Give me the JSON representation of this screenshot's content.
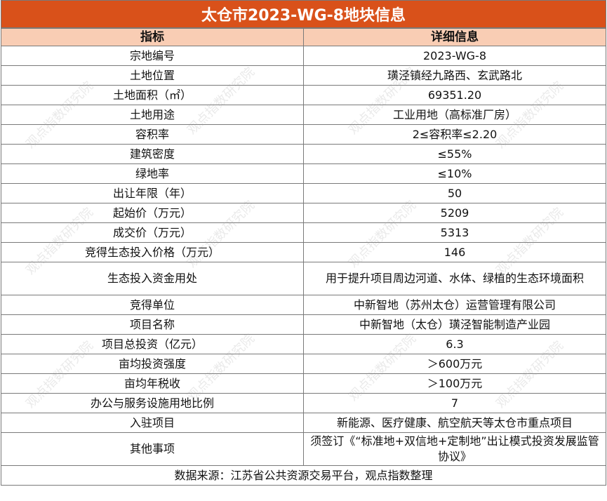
{
  "title": "太仓市2023-WG-8地块信息",
  "header": {
    "col1": "指标",
    "col2": "详细信息"
  },
  "rows": [
    {
      "label": "宗地编号",
      "value": "2023-WG-8"
    },
    {
      "label": "土地位置",
      "value": "璜泾镇经九路西、玄武路北"
    },
    {
      "label": "土地面积（㎡）",
      "value": "69351.20"
    },
    {
      "label": "土地用途",
      "value": "工业用地（高标准厂房）"
    },
    {
      "label": "容积率",
      "value": "2≤容积率≤2.20"
    },
    {
      "label": "建筑密度",
      "value": "≤55%"
    },
    {
      "label": "绿地率",
      "value": "≤10%"
    },
    {
      "label": "出让年限（年）",
      "value": "50"
    },
    {
      "label": "起始价（万元）",
      "value": "5209"
    },
    {
      "label": "成交价（万元）",
      "value": "5313"
    },
    {
      "label": "竞得生态投入价格（万元）",
      "value": "146"
    },
    {
      "label": "生态投入资金用处",
      "value": "用于提升项目周边河道、水体、绿植的生态环境面积"
    },
    {
      "label": "竞得单位",
      "value": "中新智地（苏州太仓）运营管理有限公司"
    },
    {
      "label": "项目名称",
      "value": "中新智地（太仓）璜泾智能制造产业园"
    },
    {
      "label": "项目总投资（亿元）",
      "value": "6.3"
    },
    {
      "label": "亩均投资强度",
      "value": "＞600万元"
    },
    {
      "label": "亩均年税收",
      "value": "＞100万元"
    },
    {
      "label": "办公与服务设施用地比例",
      "value": "7"
    },
    {
      "label": "入驻项目",
      "value": "新能源、医疗健康、航空航天等太仓市重点项目"
    },
    {
      "label": "其他事项",
      "value": "须签订《“标准地+双信地+定制地”出让模式投资发展监管协议》"
    }
  ],
  "source": "数据来源：江苏省公共资源交易平台，观点指数整理",
  "watermark": "观点指数研究院",
  "colors": {
    "title_bg": "#D9511A",
    "header_bg": "#F9CDB4",
    "border": "#7a7a7a"
  }
}
